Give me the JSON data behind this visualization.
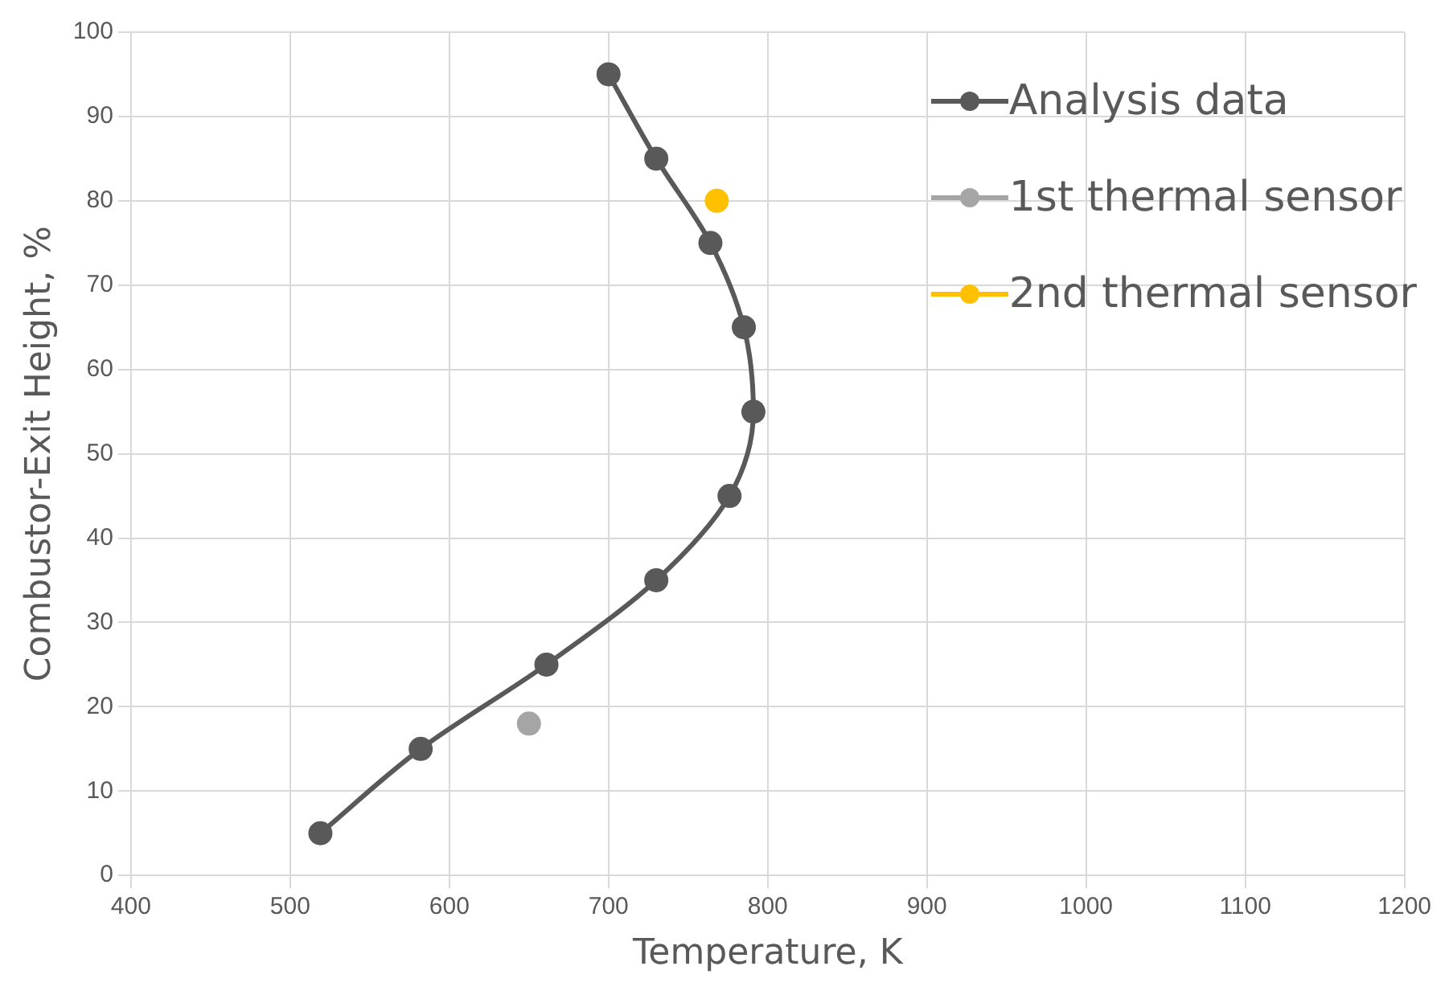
{
  "chart_data": {
    "type": "line",
    "xlabel": "Temperature, K",
    "ylabel": "Combustor-Exit Height, %",
    "xlim": [
      400,
      1200
    ],
    "xticks": [
      400,
      500,
      600,
      700,
      800,
      900,
      1000,
      1100,
      1200
    ],
    "ylim": [
      0,
      100
    ],
    "yticks": [
      0,
      10,
      20,
      30,
      40,
      50,
      60,
      70,
      80,
      90,
      100
    ],
    "grid": true,
    "legend": "top right",
    "marker": "circle",
    "series": [
      {
        "name": "Analysis data",
        "color": "#595959",
        "x": [
          519,
          582,
          661,
          730,
          776,
          791,
          785,
          764,
          730,
          700
        ],
        "values": [
          5,
          15,
          25,
          35,
          45,
          55,
          65,
          75,
          85,
          95
        ]
      },
      {
        "name": "1st thermal sensor",
        "color": "#a5a5a5",
        "type": "scatter",
        "x": [
          650
        ],
        "values": [
          18
        ]
      },
      {
        "name": "2nd thermal sensor",
        "color": "#ffc000",
        "type": "scatter",
        "x": [
          768
        ],
        "values": [
          80
        ]
      }
    ]
  }
}
